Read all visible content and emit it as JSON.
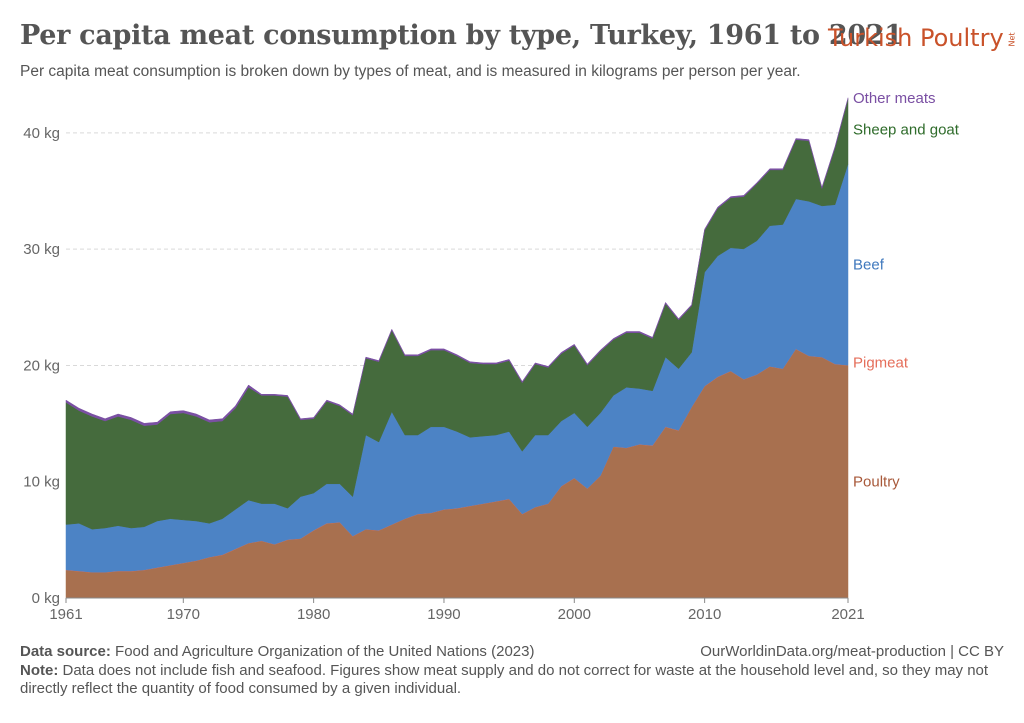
{
  "title": "Per capita meat consumption by type, Turkey, 1961 to 2021",
  "subtitle": "Per capita meat consumption is broken down by types of meat, and is measured in kilograms per person per year.",
  "logo": {
    "text": "Turkish Poultry",
    "suffix": "Net",
    "color": "#c9522a"
  },
  "footer": {
    "source_label": "Data source:",
    "source_text": "Food and Agriculture Organization of the United Nations (2023)",
    "credit": "OurWorldinData.org/meat-production | CC BY",
    "note_label": "Note:",
    "note_text": "Data does not include fish and seafood. Figures show meat supply and do not correct for waste at the household level and, so they may not directly reflect the quantity of food consumed by a given individual."
  },
  "chart_data": {
    "type": "area",
    "stacked": true,
    "title": "Per capita meat consumption by type, Turkey, 1961 to 2021",
    "xlabel": "",
    "ylabel": "",
    "xlim": [
      1961,
      2021
    ],
    "ylim": [
      0,
      43
    ],
    "grid": "horizontal dashed",
    "y_ticks": [
      0,
      10,
      20,
      30,
      40
    ],
    "y_tick_labels": [
      "0 kg",
      "10 kg",
      "20 kg",
      "30 kg",
      "40 kg"
    ],
    "x_ticks": [
      1961,
      1970,
      1980,
      1990,
      2000,
      2010,
      2021
    ],
    "x_tick_labels": [
      "1961",
      "1970",
      "1980",
      "1990",
      "2000",
      "2010",
      "2021"
    ],
    "legend_placement": "right, inline labels",
    "x": [
      1961,
      1962,
      1963,
      1964,
      1965,
      1966,
      1967,
      1968,
      1969,
      1970,
      1971,
      1972,
      1973,
      1974,
      1975,
      1976,
      1977,
      1978,
      1979,
      1980,
      1981,
      1982,
      1983,
      1984,
      1985,
      1986,
      1987,
      1988,
      1989,
      1990,
      1991,
      1992,
      1993,
      1994,
      1995,
      1996,
      1997,
      1998,
      1999,
      2000,
      2001,
      2002,
      2003,
      2004,
      2005,
      2006,
      2007,
      2008,
      2009,
      2010,
      2011,
      2012,
      2013,
      2014,
      2015,
      2016,
      2017,
      2018,
      2019,
      2020,
      2021
    ],
    "series": [
      {
        "name": "Poultry",
        "color": "#a8704f",
        "values": [
          2.4,
          2.3,
          2.2,
          2.2,
          2.3,
          2.3,
          2.4,
          2.6,
          2.8,
          3.0,
          3.2,
          3.5,
          3.7,
          4.2,
          4.7,
          4.9,
          4.6,
          5.0,
          5.1,
          5.8,
          6.4,
          6.5,
          5.3,
          5.9,
          5.8,
          6.3,
          6.8,
          7.2,
          7.3,
          7.6,
          7.7,
          7.9,
          8.1,
          8.3,
          8.5,
          7.2,
          7.8,
          8.1,
          9.6,
          10.3,
          9.4,
          10.5,
          13.0,
          12.9,
          13.2,
          13.1,
          14.7,
          14.4,
          16.4,
          18.2,
          19.0,
          19.5,
          18.8,
          19.2,
          19.9,
          19.7,
          21.4,
          20.8,
          20.7,
          20.1,
          20.0
        ]
      },
      {
        "name": "Pigmeat",
        "color": "#e56e5a",
        "values": [
          0.02,
          0.02,
          0.02,
          0.02,
          0.02,
          0.02,
          0.02,
          0.02,
          0.02,
          0.02,
          0.02,
          0.02,
          0.02,
          0.02,
          0.02,
          0.02,
          0.02,
          0.02,
          0.02,
          0.02,
          0.02,
          0.02,
          0.02,
          0.02,
          0.02,
          0.02,
          0.02,
          0.02,
          0.02,
          0.02,
          0.02,
          0.02,
          0.02,
          0.02,
          0.02,
          0.02,
          0.02,
          0.02,
          0.02,
          0.02,
          0.02,
          0.02,
          0.02,
          0.02,
          0.02,
          0.02,
          0.02,
          0.02,
          0.02,
          0.02,
          0.02,
          0.02,
          0.02,
          0.02,
          0.02,
          0.02,
          0.02,
          0.02,
          0.02,
          0.02,
          0.02
        ]
      },
      {
        "name": "Beef",
        "color": "#4c83c5",
        "values": [
          3.9,
          4.1,
          3.7,
          3.8,
          3.9,
          3.7,
          3.7,
          4.0,
          4.0,
          3.7,
          3.4,
          2.9,
          3.1,
          3.4,
          3.7,
          3.2,
          3.5,
          2.7,
          3.6,
          3.2,
          3.4,
          3.3,
          3.4,
          8.1,
          7.6,
          9.7,
          7.2,
          6.8,
          7.4,
          7.1,
          6.6,
          5.9,
          5.8,
          5.7,
          5.8,
          5.4,
          6.2,
          5.9,
          5.6,
          5.6,
          5.3,
          5.4,
          4.4,
          5.2,
          4.8,
          4.7,
          6.0,
          5.3,
          4.7,
          9.8,
          10.4,
          10.6,
          11.2,
          11.5,
          12.1,
          12.4,
          12.9,
          13.3,
          13.0,
          13.7,
          17.3
        ]
      },
      {
        "name": "Sheep and goat",
        "color": "#456b3d",
        "values": [
          10.5,
          9.7,
          9.7,
          9.2,
          9.4,
          9.3,
          8.7,
          8.3,
          9.0,
          9.2,
          9.0,
          8.7,
          8.4,
          8.7,
          9.7,
          9.3,
          9.3,
          9.6,
          6.6,
          6.4,
          7.1,
          6.7,
          7.0,
          6.6,
          6.9,
          7.0,
          6.8,
          6.8,
          6.6,
          6.6,
          6.5,
          6.4,
          6.2,
          6.1,
          6.1,
          5.9,
          6.1,
          5.8,
          5.8,
          5.8,
          5.3,
          5.3,
          4.8,
          4.7,
          4.8,
          4.5,
          4.6,
          4.2,
          4.0,
          3.6,
          4.1,
          4.3,
          4.5,
          4.9,
          4.8,
          4.7,
          5.1,
          5.2,
          1.5,
          4.9,
          5.6
        ]
      },
      {
        "name": "Other meats",
        "color": "#7a4fa3",
        "values": [
          0.2,
          0.2,
          0.2,
          0.2,
          0.2,
          0.2,
          0.2,
          0.2,
          0.2,
          0.2,
          0.2,
          0.2,
          0.2,
          0.2,
          0.2,
          0.1,
          0.1,
          0.1,
          0.1,
          0.1,
          0.1,
          0.1,
          0.1,
          0.1,
          0.1,
          0.1,
          0.1,
          0.1,
          0.1,
          0.1,
          0.1,
          0.1,
          0.1,
          0.1,
          0.1,
          0.1,
          0.1,
          0.1,
          0.1,
          0.1,
          0.1,
          0.1,
          0.1,
          0.1,
          0.1,
          0.1,
          0.1,
          0.1,
          0.1,
          0.1,
          0.1,
          0.1,
          0.1,
          0.1,
          0.1,
          0.1,
          0.1,
          0.1,
          0.1,
          0.1,
          0.1
        ]
      }
    ],
    "labels": [
      {
        "name": "Other meats",
        "color": "#7a4fa3"
      },
      {
        "name": "Sheep and goat",
        "color": "#2e6b2a"
      },
      {
        "name": "Beef",
        "color": "#3f78bd"
      },
      {
        "name": "Pigmeat",
        "color": "#e56e5a"
      },
      {
        "name": "Poultry",
        "color": "#a8593a"
      }
    ]
  }
}
